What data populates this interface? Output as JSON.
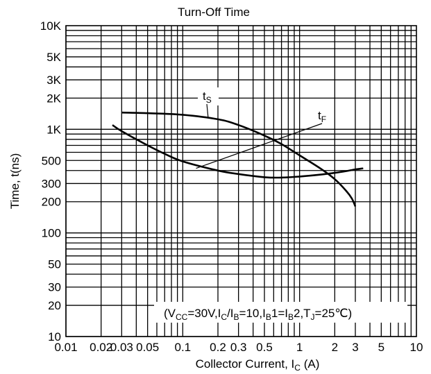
{
  "chart_data": {
    "type": "line",
    "title": "Turn-Off Time",
    "xlabel": {
      "main": "Collector Current, I",
      "sub": "C",
      "unit": " (A)"
    },
    "ylabel": "Time, t(ns)",
    "x_scale": "log",
    "y_scale": "log",
    "xlim": [
      0.01,
      10
    ],
    "ylim": [
      10,
      10000
    ],
    "grid": true,
    "x_ticks": [
      {
        "v": 0.01,
        "label": "0.01"
      },
      {
        "v": 0.02,
        "label": "0.02"
      },
      {
        "v": 0.03,
        "label": "0.03"
      },
      {
        "v": 0.05,
        "label": "0.05"
      },
      {
        "v": 0.1,
        "label": "0.1"
      },
      {
        "v": 0.2,
        "label": "0.2"
      },
      {
        "v": 0.3,
        "label": "0.3"
      },
      {
        "v": 0.5,
        "label": "0.5"
      },
      {
        "v": 1,
        "label": "1"
      },
      {
        "v": 2,
        "label": "2"
      },
      {
        "v": 3,
        "label": "3"
      },
      {
        "v": 5,
        "label": "5"
      },
      {
        "v": 10,
        "label": "10"
      }
    ],
    "y_ticks": [
      {
        "v": 10,
        "label": "10"
      },
      {
        "v": 20,
        "label": "20"
      },
      {
        "v": 30,
        "label": "30"
      },
      {
        "v": 50,
        "label": "50"
      },
      {
        "v": 100,
        "label": "100"
      },
      {
        "v": 200,
        "label": "200"
      },
      {
        "v": 300,
        "label": "300"
      },
      {
        "v": 500,
        "label": "500"
      },
      {
        "v": 1000,
        "label": "1K"
      },
      {
        "v": 2000,
        "label": "2K"
      },
      {
        "v": 3000,
        "label": "3K"
      },
      {
        "v": 5000,
        "label": "5K"
      },
      {
        "v": 10000,
        "label": "10K"
      }
    ],
    "series": [
      {
        "name": "tS",
        "label_main": "t",
        "label_sub": "S",
        "x": [
          0.03,
          0.05,
          0.1,
          0.2,
          0.3,
          0.5,
          0.7,
          1,
          1.5,
          2,
          2.5,
          2.8,
          3
        ],
        "y": [
          1450,
          1430,
          1380,
          1250,
          1100,
          870,
          720,
          560,
          420,
          330,
          255,
          215,
          180
        ]
      },
      {
        "name": "tF",
        "label_main": "t",
        "label_sub": "F",
        "x": [
          0.025,
          0.03,
          0.05,
          0.07,
          0.1,
          0.2,
          0.3,
          0.5,
          0.7,
          1,
          1.5,
          2,
          2.5,
          3,
          3.5
        ],
        "y": [
          1100,
          960,
          700,
          580,
          490,
          400,
          370,
          345,
          342,
          350,
          365,
          380,
          395,
          410,
          420
        ]
      }
    ],
    "conditions": [
      {
        "t": "(V",
        "s": false
      },
      {
        "t": "CC",
        "s": true
      },
      {
        "t": "=30V,I",
        "s": false
      },
      {
        "t": "C",
        "s": true
      },
      {
        "t": "/I",
        "s": false
      },
      {
        "t": "B",
        "s": true
      },
      {
        "t": "=10,I",
        "s": false
      },
      {
        "t": "B",
        "s": true
      },
      {
        "t": "1=I",
        "s": false
      },
      {
        "t": "B",
        "s": true
      },
      {
        "t": "2,T",
        "s": false
      },
      {
        "t": "J",
        "s": true
      },
      {
        "t": "=25℃)",
        "s": false
      }
    ]
  }
}
